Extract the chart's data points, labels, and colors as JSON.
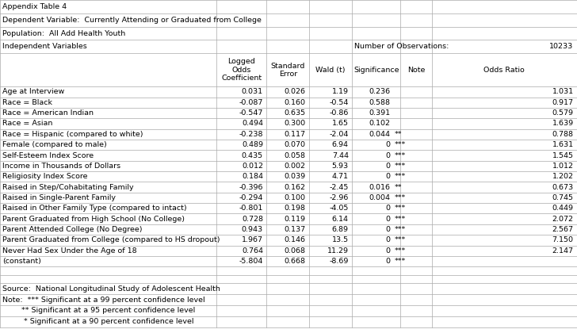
{
  "title_row1": "Appendix Table 4",
  "title_row2": "Dependent Variable:  Currently Attending or Graduated from College",
  "title_row3": "Population:  All Add Health Youth",
  "title_row4": "Independent Variables",
  "num_obs_label": "Number of Observations:",
  "num_obs_value": "10233",
  "col_headers": [
    "Logged\nOdds\nCoefficient",
    "Standard\nError",
    "Wald (t)",
    "Significance",
    "Note",
    "Odds Ratio"
  ],
  "rows": [
    [
      "Age at Interview",
      "0.031",
      "0.026",
      "1.19",
      "0.236",
      "",
      "1.031"
    ],
    [
      "Race = Black",
      "-0.087",
      "0.160",
      "-0.54",
      "0.588",
      "",
      "0.917"
    ],
    [
      "Race = American Indian",
      "-0.547",
      "0.635",
      "-0.86",
      "0.391",
      "",
      "0.579"
    ],
    [
      "Race = Asian",
      "0.494",
      "0.300",
      "1.65",
      "0.102",
      "",
      "1.639"
    ],
    [
      "Race = Hispanic (compared to white)",
      "-0.238",
      "0.117",
      "-2.04",
      "0.044",
      "**",
      "0.788"
    ],
    [
      "Female (compared to male)",
      "0.489",
      "0.070",
      "6.94",
      "0",
      "***",
      "1.631"
    ],
    [
      "Self-Esteem Index Score",
      "0.435",
      "0.058",
      "7.44",
      "0",
      "***",
      "1.545"
    ],
    [
      "Income in Thousands of Dollars",
      "0.012",
      "0.002",
      "5.93",
      "0",
      "***",
      "1.012"
    ],
    [
      "Religiosity Index Score",
      "0.184",
      "0.039",
      "4.71",
      "0",
      "***",
      "1.202"
    ],
    [
      "Raised in Step/Cohabitating Family",
      "-0.396",
      "0.162",
      "-2.45",
      "0.016",
      "**",
      "0.673"
    ],
    [
      "Raised in Single-Parent Family",
      "-0.294",
      "0.100",
      "-2.96",
      "0.004",
      "***",
      "0.745"
    ],
    [
      "Raised in Other Family Type (compared to intact)",
      "-0.801",
      "0.198",
      "-4.05",
      "0",
      "***",
      "0.449"
    ],
    [
      "Parent Graduated from High School (No College)",
      "0.728",
      "0.119",
      "6.14",
      "0",
      "***",
      "2.072"
    ],
    [
      "Parent Attended College (No Degree)",
      "0.943",
      "0.137",
      "6.89",
      "0",
      "***",
      "2.567"
    ],
    [
      "Parent Graduated from College (compared to HS dropout)",
      "1.967",
      "0.146",
      "13.5",
      "0",
      "***",
      "7.150"
    ],
    [
      "Never Had Sex Under the Age of 18",
      "0.764",
      "0.068",
      "11.29",
      "0",
      "***",
      "2.147"
    ],
    [
      "(constant)",
      "-5.804",
      "0.668",
      "-8.69",
      "0",
      "***",
      ""
    ]
  ],
  "footer": [
    "Source:  National Longitudinal Study of Adolescent Health",
    "Note:  *** Significant at a 99 percent confidence level",
    "        ** Significant at a 95 percent confidence level",
    "         * Significant at a 90 percent confidence level"
  ],
  "bg_color": "#ffffff",
  "grid_color": "#aaaaaa",
  "text_color": "#000000",
  "font_size": 6.8,
  "col_bounds": [
    0.0,
    0.375,
    0.462,
    0.536,
    0.61,
    0.694,
    0.748,
    1.0
  ]
}
